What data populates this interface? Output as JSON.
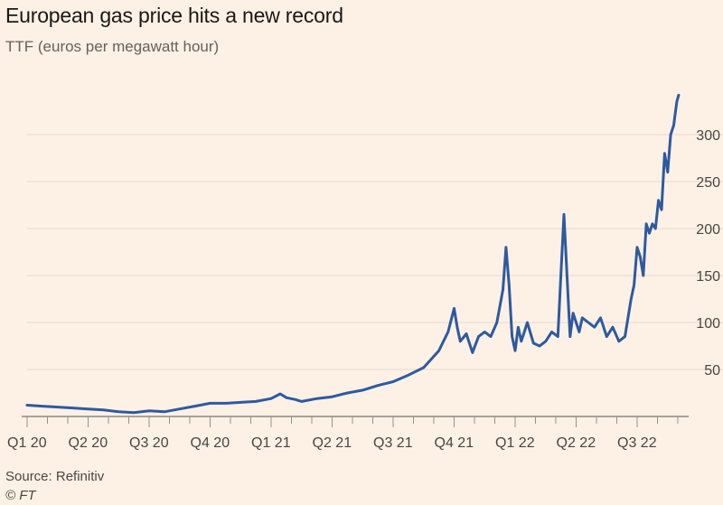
{
  "title": "European gas price hits a new record",
  "subtitle": "TTF (euros per megawatt hour)",
  "source": "Source: Refinitiv",
  "credit": "© FT",
  "colors": {
    "line": "#2e5a9e",
    "grid": "#e6d9ce",
    "background": "#fdf1e6"
  },
  "chart_data": {
    "type": "line",
    "title": "European gas price hits a new record",
    "ylabel": "TTF (euros per megawatt hour)",
    "ylim": [
      0,
      345
    ],
    "yticks": [
      50,
      100,
      150,
      200,
      250,
      300
    ],
    "y_axis_side": "right",
    "grid": "horizontal",
    "x_tick_labels": [
      "Q1 20",
      "Q2 20",
      "Q3 20",
      "Q4 20",
      "Q1 21",
      "Q2 21",
      "Q3 21",
      "Q4 21",
      "Q1 22",
      "Q2 22",
      "Q3 22"
    ],
    "series": [
      {
        "x": [
          0,
          0.25,
          0.5,
          0.75,
          1.0,
          1.25,
          1.5,
          1.75,
          2.0,
          2.25,
          2.5,
          2.75,
          3.0,
          3.25,
          3.5,
          3.75,
          4.0,
          4.15,
          4.25,
          4.4,
          4.5,
          4.75,
          5.0,
          5.25,
          5.5,
          5.75,
          6.0,
          6.25,
          6.5,
          6.75,
          6.9,
          7.0,
          7.05,
          7.1,
          7.2,
          7.3,
          7.4,
          7.5,
          7.6,
          7.7,
          7.8,
          7.85,
          7.9,
          7.95,
          8.0,
          8.05,
          8.1,
          8.2,
          8.3,
          8.4,
          8.5,
          8.6,
          8.7,
          8.75,
          8.8,
          8.85,
          8.9,
          8.95,
          9.0,
          9.05,
          9.1,
          9.2,
          9.3,
          9.4,
          9.5,
          9.6,
          9.7,
          9.8,
          9.85,
          9.9,
          9.95,
          10.0,
          10.05,
          10.1,
          10.15,
          10.2,
          10.25,
          10.3,
          10.35,
          10.4,
          10.45,
          10.5,
          10.55,
          10.6,
          10.62,
          10.65,
          10.68
        ],
        "values": [
          12,
          11,
          10,
          9,
          8,
          7,
          5,
          4,
          6,
          5,
          8,
          11,
          14,
          14,
          15,
          16,
          19,
          24,
          20,
          18,
          16,
          19,
          21,
          25,
          28,
          33,
          37,
          44,
          52,
          70,
          90,
          115,
          95,
          80,
          88,
          68,
          85,
          90,
          85,
          100,
          135,
          180,
          140,
          85,
          70,
          95,
          80,
          100,
          78,
          75,
          80,
          90,
          85,
          150,
          215,
          150,
          85,
          110,
          100,
          90,
          105,
          100,
          95,
          105,
          85,
          95,
          80,
          85,
          105,
          125,
          140,
          180,
          170,
          150,
          205,
          195,
          205,
          200,
          230,
          220,
          280,
          260,
          300,
          310,
          320,
          335,
          342
        ]
      }
    ]
  }
}
